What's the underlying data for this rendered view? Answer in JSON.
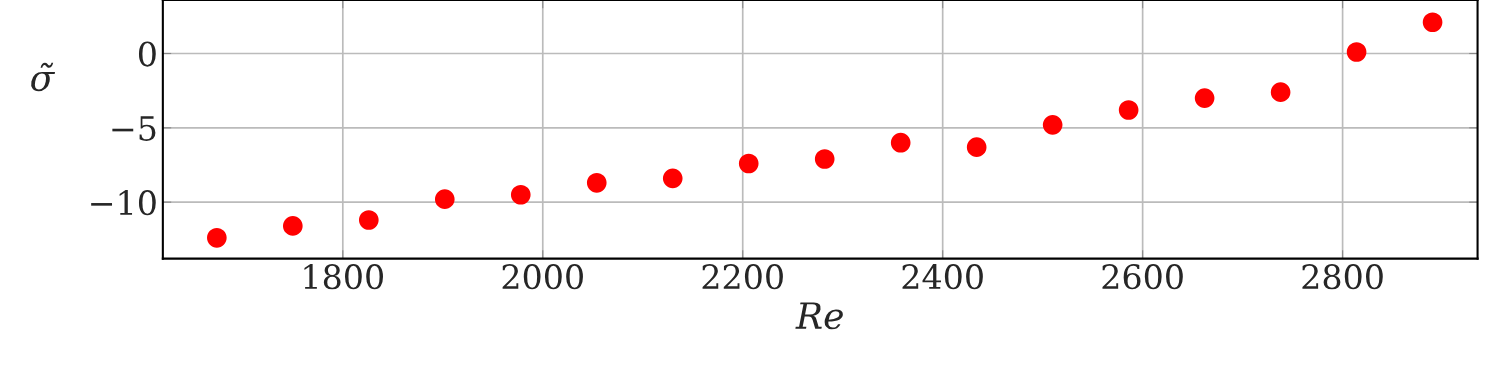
{
  "chart_data": {
    "type": "scatter",
    "xlabel": "Re",
    "ylabel": "σ̃",
    "x": [
      1674,
      1750,
      1826,
      1902,
      1978,
      2054,
      2130,
      2206,
      2282,
      2358,
      2434,
      2510,
      2586,
      2662,
      2738,
      2814,
      2890
    ],
    "series": [
      {
        "color": "#ff0000",
        "values": [
          -12.4,
          -11.6,
          -11.2,
          -9.8,
          -9.5,
          -8.7,
          -8.4,
          -7.4,
          -7.1,
          -6.0,
          -6.3,
          -4.8,
          -3.8,
          -3.0,
          -2.6,
          0.1,
          2.1
        ]
      }
    ],
    "xlim": [
      1620,
      2935
    ],
    "ylim": [
      -13.8,
      3.6
    ],
    "xticks": [
      1800,
      2000,
      2200,
      2400,
      2600,
      2800
    ],
    "yticks": [
      0,
      {
        "value": -5,
        "label": "−5"
      },
      {
        "value": -10,
        "label": "−10"
      }
    ],
    "grid": true,
    "marker": "circle",
    "legend": false
  }
}
